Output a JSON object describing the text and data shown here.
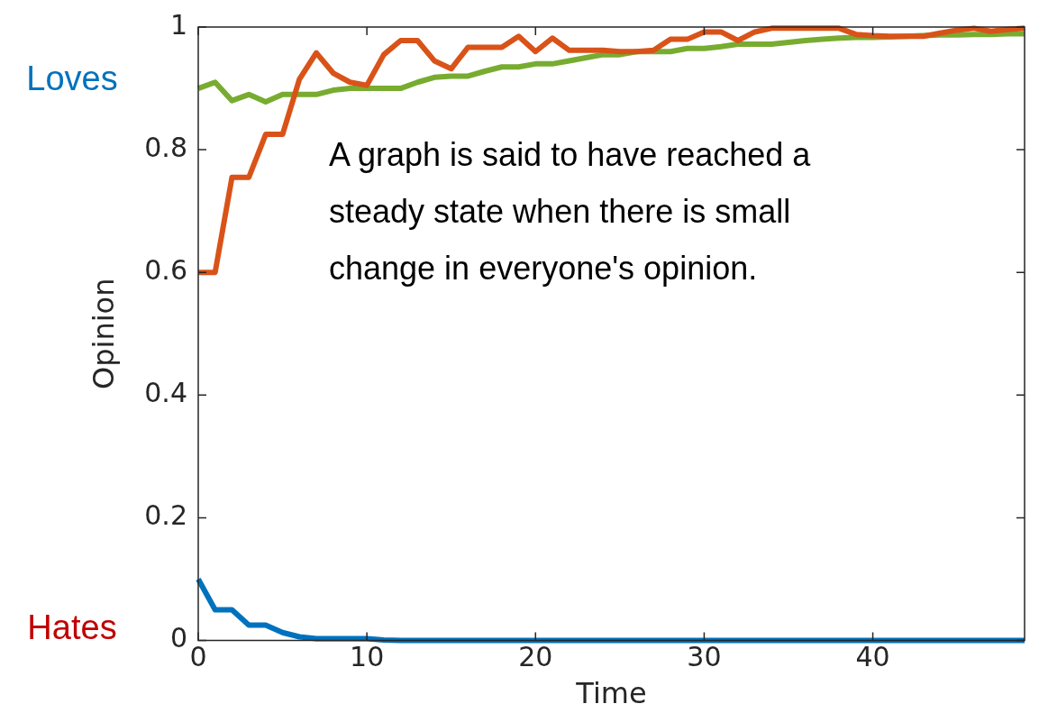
{
  "chart_data": {
    "type": "line",
    "xlabel": "Time",
    "ylabel": "Opinion",
    "x": [
      0,
      1,
      2,
      3,
      4,
      5,
      6,
      7,
      8,
      9,
      10,
      11,
      12,
      13,
      14,
      15,
      16,
      17,
      18,
      19,
      20,
      21,
      22,
      23,
      24,
      25,
      26,
      27,
      28,
      29,
      30,
      31,
      32,
      33,
      34,
      35,
      36,
      37,
      38,
      39,
      40,
      41,
      42,
      43,
      44,
      45,
      46,
      47,
      48,
      49
    ],
    "series": [
      {
        "color": "#d95319",
        "values": [
          0.6,
          0.6,
          0.755,
          0.755,
          0.825,
          0.825,
          0.915,
          0.958,
          0.925,
          0.91,
          0.905,
          0.955,
          0.978,
          0.978,
          0.945,
          0.932,
          0.967,
          0.967,
          0.967,
          0.985,
          0.96,
          0.982,
          0.962,
          0.962,
          0.962,
          0.96,
          0.96,
          0.962,
          0.98,
          0.98,
          0.992,
          0.992,
          0.978,
          0.992,
          0.998,
          0.998,
          0.998,
          0.998,
          0.998,
          0.988,
          0.986,
          0.985,
          0.985,
          0.985,
          0.99,
          0.995,
          0.998,
          0.993,
          0.996,
          0.998
        ]
      },
      {
        "color": "#77ac30",
        "values": [
          0.9,
          0.91,
          0.88,
          0.89,
          0.878,
          0.89,
          0.89,
          0.89,
          0.897,
          0.9,
          0.9,
          0.9,
          0.9,
          0.91,
          0.918,
          0.92,
          0.92,
          0.928,
          0.935,
          0.935,
          0.94,
          0.94,
          0.945,
          0.95,
          0.955,
          0.955,
          0.96,
          0.96,
          0.96,
          0.965,
          0.965,
          0.968,
          0.972,
          0.972,
          0.972,
          0.975,
          0.978,
          0.98,
          0.982,
          0.983,
          0.983,
          0.984,
          0.985,
          0.986,
          0.987,
          0.987,
          0.988,
          0.988,
          0.989,
          0.989
        ]
      },
      {
        "color": "#0072bd",
        "values": [
          0.1,
          0.05,
          0.05,
          0.025,
          0.025,
          0.013,
          0.006,
          0.003,
          0.003,
          0.003,
          0.003,
          0.001,
          0,
          0,
          0,
          0,
          0,
          0,
          0,
          0,
          0,
          0,
          0,
          0,
          0,
          0,
          0,
          0,
          0,
          0,
          0,
          0,
          0,
          0,
          0,
          0,
          0,
          0,
          0,
          0,
          0,
          0,
          0,
          0,
          0,
          0,
          0,
          0,
          0,
          0
        ]
      }
    ],
    "xlim": [
      0,
      49
    ],
    "xticks": [
      0,
      10,
      20,
      30,
      40
    ],
    "ylim": [
      0,
      1
    ],
    "yticks": [
      0,
      0.2,
      0.4,
      0.6,
      0.8,
      1
    ],
    "grid": false,
    "legend": false,
    "marker": "none",
    "line_style": "solid",
    "annotations": [
      "A graph is said to have reached a steady state when there is small change in everyone's opinion.",
      "Loves",
      "Hates"
    ]
  }
}
